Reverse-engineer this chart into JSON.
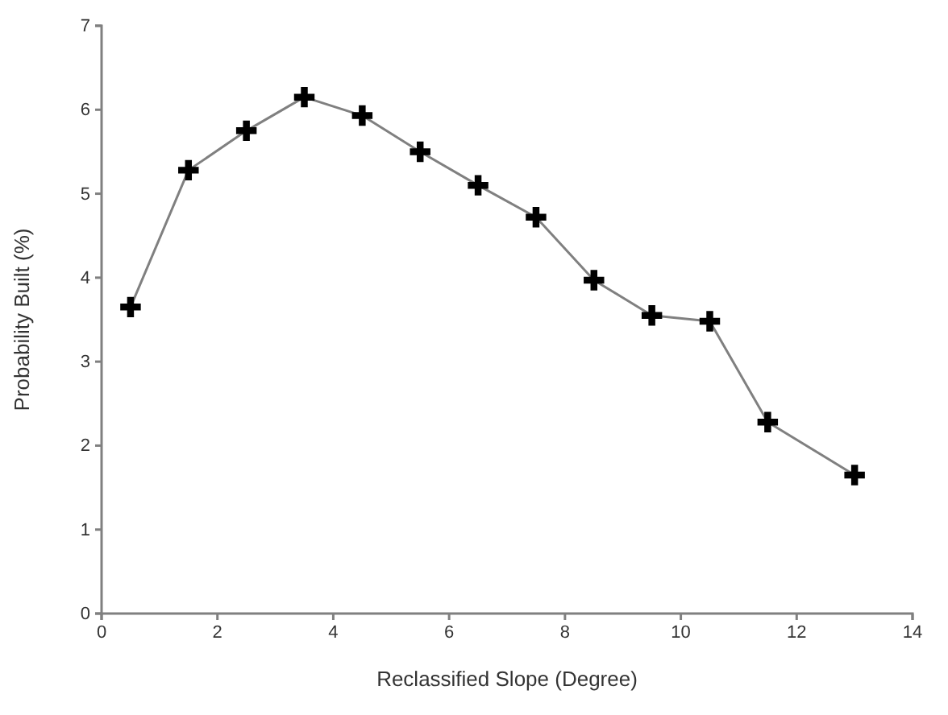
{
  "chart_data": {
    "type": "line",
    "xlabel": "Reclassified Slope (Degree)",
    "ylabel": "Probability Built (%)",
    "x": [
      0.5,
      1.5,
      2.5,
      3.5,
      4.5,
      5.5,
      6.5,
      7.5,
      8.5,
      9.5,
      10.5,
      11.5,
      13
    ],
    "series": [
      {
        "color": "#808080",
        "values": [
          3.65,
          5.28,
          5.75,
          6.15,
          5.93,
          5.5,
          5.1,
          4.72,
          3.97,
          3.55,
          3.48,
          2.28,
          1.65
        ]
      }
    ],
    "xlim": [
      0,
      14
    ],
    "xticks": [
      0,
      2,
      4,
      6,
      8,
      10,
      12,
      14
    ],
    "ylim": [
      0,
      7
    ],
    "yticks": [
      0,
      1,
      2,
      3,
      4,
      5,
      6,
      7
    ],
    "marker": "cross",
    "line_style": "solid"
  }
}
